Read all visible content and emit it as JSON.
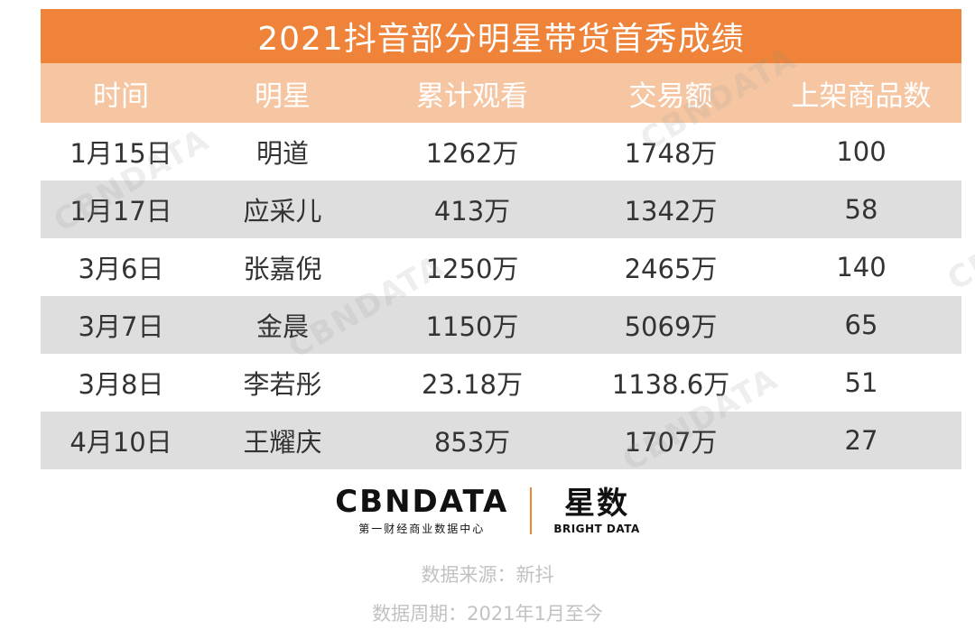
{
  "title": "2021抖音部分明星带货首秀成绩",
  "columns": [
    "时间",
    "明星",
    "累计观看",
    "交易额",
    "上架商品数"
  ],
  "rows": [
    [
      "1月15日",
      "明道",
      "1262万",
      "1748万",
      "100"
    ],
    [
      "1月17日",
      "应采儿",
      "413万",
      "1342万",
      "58"
    ],
    [
      "3月6日",
      "张嘉倪",
      "1250万",
      "2465万",
      "140"
    ],
    [
      "3月7日",
      "金晨",
      "1150万",
      "5069万",
      "65"
    ],
    [
      "3月8日",
      "李若彤",
      "23.18万",
      "1138.6万",
      "51"
    ],
    [
      "4月10日",
      "王耀庆",
      "853万",
      "1707万",
      "27"
    ]
  ],
  "logo": {
    "cbn_name": "CBNDATA",
    "cbn_tagline": "第一财经商业数据中心",
    "xingshu_name": "星数",
    "xingshu_tagline": "BRIGHT DATA"
  },
  "watermark_text": "CBNDATA",
  "source": "数据来源：新抖",
  "period": "数据周期：2021年1月至今",
  "colors": {
    "title_bg": "#ee8339",
    "header_bg": "#f6c6a3",
    "alt_row_bg": "#dedede",
    "divider": "#ee8339"
  }
}
